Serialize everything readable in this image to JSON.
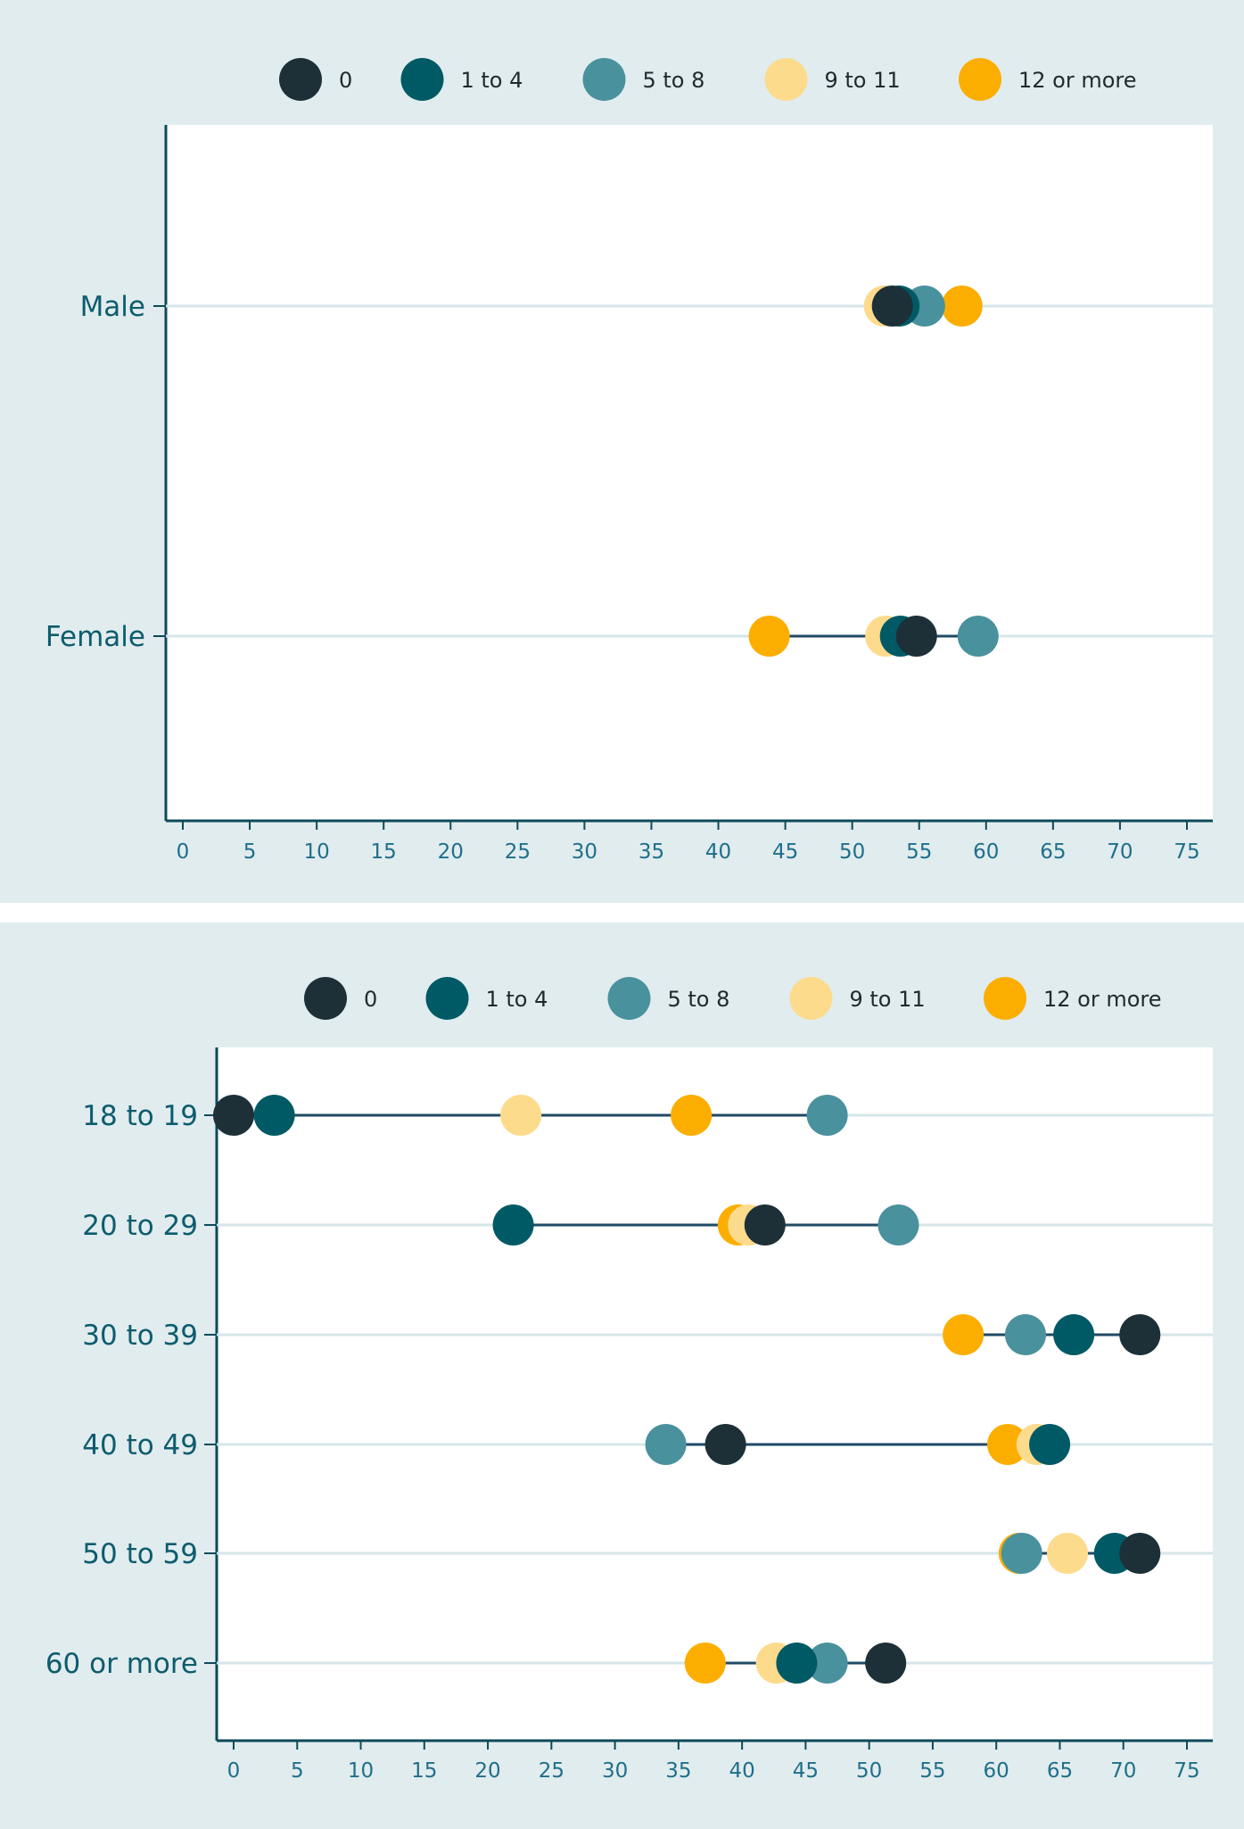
{
  "chart_data": [
    {
      "type": "scatter",
      "orientation": "horizontal-dot",
      "title": "",
      "xlabel": "",
      "ylabel": "",
      "xlim": [
        0,
        75
      ],
      "xticks": [
        "0",
        "5",
        "10",
        "15",
        "20",
        "25",
        "30",
        "35",
        "40",
        "45",
        "50",
        "55",
        "60",
        "65",
        "70",
        "75"
      ],
      "grid": true,
      "legend_position": "top",
      "legend": [
        "0",
        "1 to 4",
        "5 to 8",
        "9 to 11",
        "12 or more"
      ],
      "categories": [
        "Male",
        "Female"
      ],
      "series": [
        {
          "name": "0",
          "color": "#1d3038",
          "values": [
            53.0,
            54.8
          ]
        },
        {
          "name": "1 to 4",
          "color": "#005a66",
          "values": [
            53.5,
            53.6
          ]
        },
        {
          "name": "5 to 8",
          "color": "#4a919e",
          "values": [
            55.4,
            59.4
          ]
        },
        {
          "name": "9 to 11",
          "color": "#fcdb8d",
          "values": [
            52.4,
            52.5
          ]
        },
        {
          "name": "12 or more",
          "color": "#fbae00",
          "values": [
            58.2,
            43.8
          ]
        }
      ]
    },
    {
      "type": "scatter",
      "orientation": "horizontal-dot",
      "title": "",
      "xlabel": "",
      "ylabel": "",
      "xlim": [
        0,
        75
      ],
      "xticks": [
        "0",
        "5",
        "10",
        "15",
        "20",
        "25",
        "30",
        "35",
        "40",
        "45",
        "50",
        "55",
        "60",
        "65",
        "70",
        "75"
      ],
      "grid": true,
      "legend_position": "top",
      "legend": [
        "0",
        "1 to 4",
        "5 to 8",
        "9 to 11",
        "12 or more"
      ],
      "categories": [
        "18 to 19",
        "20 to 29",
        "30 to 39",
        "40 to 49",
        "50 to 59",
        "60 or more"
      ],
      "series": [
        {
          "name": "0",
          "color": "#1d3038",
          "values": [
            0.0,
            41.8,
            71.3,
            38.7,
            71.3,
            51.3
          ]
        },
        {
          "name": "1 to 4",
          "color": "#005a66",
          "values": [
            3.2,
            22.0,
            66.1,
            64.2,
            69.3,
            44.3
          ]
        },
        {
          "name": "5 to 8",
          "color": "#4a919e",
          "values": [
            46.7,
            52.3,
            62.3,
            34.0,
            62.0,
            46.7
          ]
        },
        {
          "name": "9 to 11",
          "color": "#fcdb8d",
          "values": [
            22.6,
            40.5,
            62.3,
            63.2,
            65.6,
            42.7
          ]
        },
        {
          "name": "12 or more",
          "color": "#fbae00",
          "values": [
            36.0,
            39.7,
            57.4,
            60.9,
            61.8,
            37.1
          ]
        }
      ]
    }
  ]
}
